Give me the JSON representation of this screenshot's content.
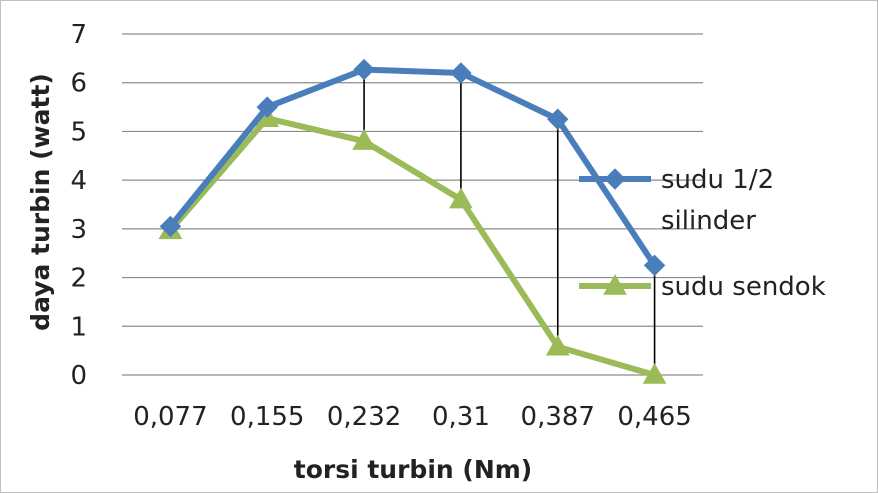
{
  "chart_data": {
    "type": "line",
    "xlabel": "torsi turbin (Nm)",
    "ylabel": "daya turbin (watt)",
    "categories": [
      "0,077",
      "0,155",
      "0,232",
      "0,31",
      "0,387",
      "0,465"
    ],
    "ylim": [
      0,
      7
    ],
    "yticks": [
      "0",
      "1",
      "2",
      "3",
      "4",
      "5",
      "6",
      "7"
    ],
    "grid": true,
    "legend_position": "right",
    "series": [
      {
        "name": "sudu 1/2 silinder",
        "name_lines": [
          "sudu 1/2",
          "silinder"
        ],
        "marker": "diamond",
        "color": "#4a7ebb",
        "values": [
          3.05,
          5.5,
          6.27,
          6.2,
          5.25,
          2.25
        ]
      },
      {
        "name": "sudu sendok",
        "name_lines": [
          "sudu sendok"
        ],
        "marker": "triangle",
        "color": "#9bbb59",
        "values": [
          2.97,
          5.27,
          4.8,
          3.6,
          0.58,
          0.0
        ]
      }
    ],
    "drop_lines": true
  }
}
